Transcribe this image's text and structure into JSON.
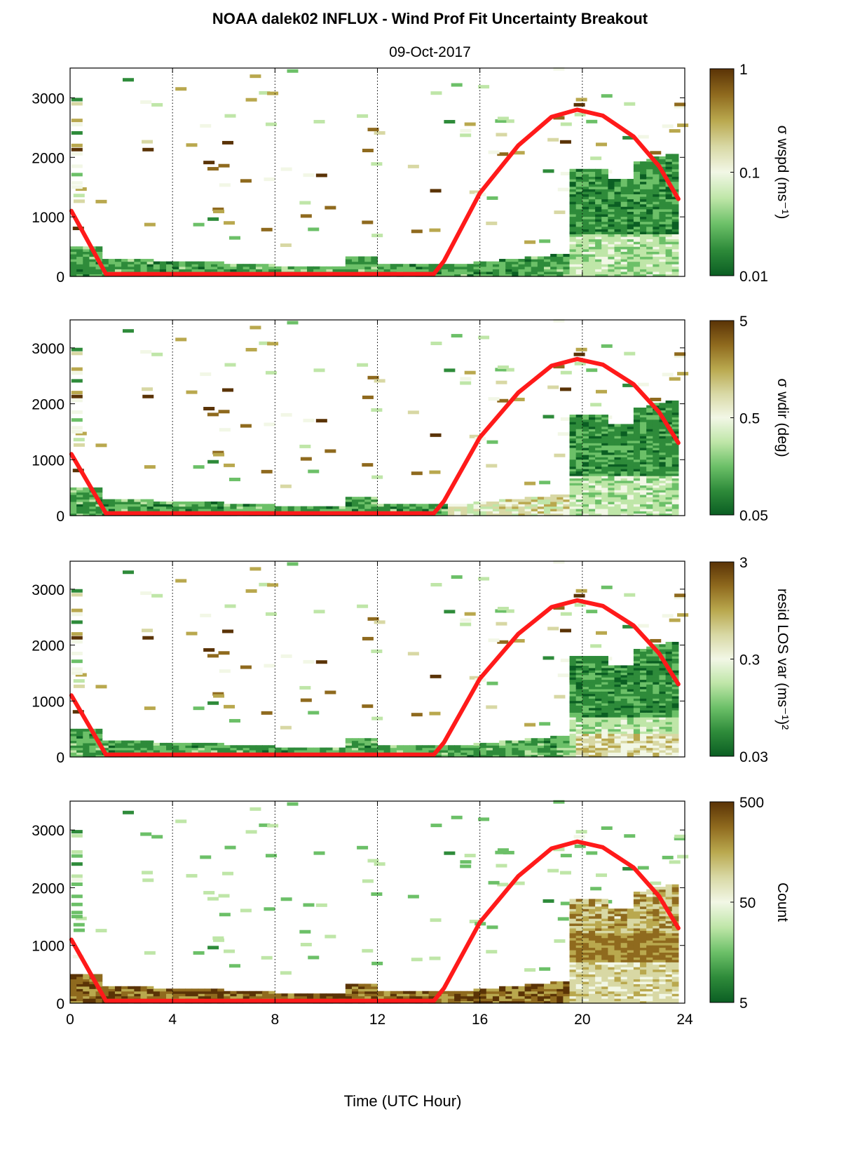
{
  "figure": {
    "title": "NOAA dalek02 INFLUX - Wind Prof Fit Uncertainty Breakout",
    "date": "09-Oct-2017",
    "xlabel": "Time (UTC Hour)"
  },
  "colormap": [
    "#0b5e23",
    "#2e8b3a",
    "#6cc068",
    "#bfe6a8",
    "#f2f7e6",
    "#d8d8a4",
    "#b9a84e",
    "#8f6a1e",
    "#5a3306"
  ],
  "chart_data": [
    {
      "type": "heatmap",
      "panel": "wspd",
      "x": {
        "ticks": [
          0,
          4,
          8,
          12,
          16,
          20,
          24
        ],
        "lim": [
          0,
          24
        ],
        "gridlines": [
          4,
          8,
          12,
          16,
          20
        ],
        "grid": "dotted"
      },
      "y": {
        "ticks": [
          0,
          1000,
          2000,
          3000
        ],
        "lim": [
          0,
          3500
        ]
      },
      "colorbar": {
        "label": "σ wspd (ms⁻¹)",
        "ticks": [
          "1",
          "0.1",
          "0.01"
        ],
        "scale": "log"
      },
      "sun_curve": [
        [
          0.05,
          1100
        ],
        [
          1.4,
          40
        ],
        [
          14.2,
          40
        ],
        [
          14.6,
          260
        ],
        [
          16.0,
          1400
        ],
        [
          17.5,
          2200
        ],
        [
          18.8,
          2680
        ],
        [
          19.8,
          2800
        ],
        [
          20.8,
          2700
        ],
        [
          22.0,
          2350
        ],
        [
          23.0,
          1850
        ],
        [
          23.75,
          1300
        ]
      ]
    },
    {
      "type": "heatmap",
      "panel": "wdir",
      "x": {
        "ticks": [
          0,
          4,
          8,
          12,
          16,
          20,
          24
        ],
        "lim": [
          0,
          24
        ],
        "gridlines": [
          4,
          8,
          12,
          16,
          20
        ],
        "grid": "dotted"
      },
      "y": {
        "ticks": [
          0,
          1000,
          2000,
          3000
        ],
        "lim": [
          0,
          3500
        ]
      },
      "colorbar": {
        "label": "σ wdir (deg)",
        "ticks": [
          "5",
          "0.5",
          "0.05"
        ],
        "scale": "log"
      },
      "sun_curve": [
        [
          0.05,
          1100
        ],
        [
          1.4,
          40
        ],
        [
          14.2,
          40
        ],
        [
          14.6,
          260
        ],
        [
          16.0,
          1400
        ],
        [
          17.5,
          2200
        ],
        [
          18.8,
          2680
        ],
        [
          19.8,
          2800
        ],
        [
          20.8,
          2700
        ],
        [
          22.0,
          2350
        ],
        [
          23.0,
          1850
        ],
        [
          23.75,
          1300
        ]
      ]
    },
    {
      "type": "heatmap",
      "panel": "resid",
      "x": {
        "ticks": [
          0,
          4,
          8,
          12,
          16,
          20,
          24
        ],
        "lim": [
          0,
          24
        ],
        "gridlines": [
          4,
          8,
          12,
          16,
          20
        ],
        "grid": "dotted"
      },
      "y": {
        "ticks": [
          0,
          1000,
          2000,
          3000
        ],
        "lim": [
          0,
          3500
        ]
      },
      "colorbar": {
        "label": "resid LOS var (ms⁻¹)²",
        "ticks": [
          "3",
          "0.3",
          "0.03"
        ],
        "scale": "log"
      },
      "sun_curve": [
        [
          0.05,
          1100
        ],
        [
          1.4,
          40
        ],
        [
          14.2,
          40
        ],
        [
          14.6,
          260
        ],
        [
          16.0,
          1400
        ],
        [
          17.5,
          2200
        ],
        [
          18.8,
          2680
        ],
        [
          19.8,
          2800
        ],
        [
          20.8,
          2700
        ],
        [
          22.0,
          2350
        ],
        [
          23.0,
          1850
        ],
        [
          23.75,
          1300
        ]
      ]
    },
    {
      "type": "heatmap",
      "panel": "count",
      "x": {
        "ticks": [
          0,
          4,
          8,
          12,
          16,
          20,
          24
        ],
        "lim": [
          0,
          24
        ],
        "gridlines": [
          4,
          8,
          12,
          16,
          20
        ],
        "grid": "dotted"
      },
      "y": {
        "ticks": [
          0,
          1000,
          2000,
          3000
        ],
        "lim": [
          0,
          3500
        ]
      },
      "colorbar": {
        "label": "Count",
        "ticks": [
          "500",
          "50",
          "5"
        ],
        "scale": "log"
      },
      "sun_curve": [
        [
          0.05,
          1100
        ],
        [
          1.4,
          40
        ],
        [
          14.2,
          40
        ],
        [
          14.6,
          260
        ],
        [
          16.0,
          1400
        ],
        [
          17.5,
          2200
        ],
        [
          18.8,
          2680
        ],
        [
          19.8,
          2800
        ],
        [
          20.8,
          2700
        ],
        [
          22.0,
          2350
        ],
        [
          23.0,
          1850
        ],
        [
          23.75,
          1300
        ]
      ]
    }
  ]
}
